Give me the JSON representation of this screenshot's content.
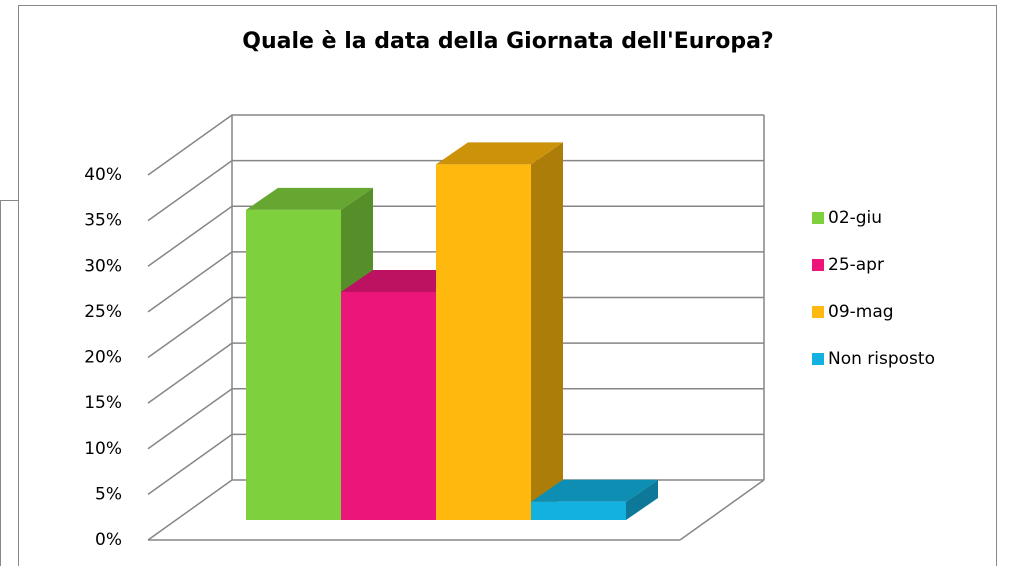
{
  "chart_data": {
    "type": "bar3d",
    "title": "Quale è la data della Giornata dell'Europa?",
    "series": [
      {
        "name": "02-giu",
        "color": "#7ed13d",
        "values": [
          34
        ]
      },
      {
        "name": "25-apr",
        "color": "#ec167a",
        "values": [
          25
        ]
      },
      {
        "name": "09-mag",
        "color": "#ffb80d",
        "values": [
          39
        ]
      },
      {
        "name": "Non risposto",
        "color": "#13b1e0",
        "values": [
          2
        ]
      }
    ],
    "ylim": [
      0,
      40
    ],
    "yticks": [
      {
        "value": 0,
        "label": "0%"
      },
      {
        "value": 5,
        "label": "5%"
      },
      {
        "value": 10,
        "label": "10%"
      },
      {
        "value": 15,
        "label": "15%"
      },
      {
        "value": 20,
        "label": "20%"
      },
      {
        "value": 25,
        "label": "25%"
      },
      {
        "value": 30,
        "label": "30%"
      },
      {
        "value": 35,
        "label": "35%"
      },
      {
        "value": 40,
        "label": "40%"
      }
    ],
    "grid": true,
    "legend": "right"
  }
}
